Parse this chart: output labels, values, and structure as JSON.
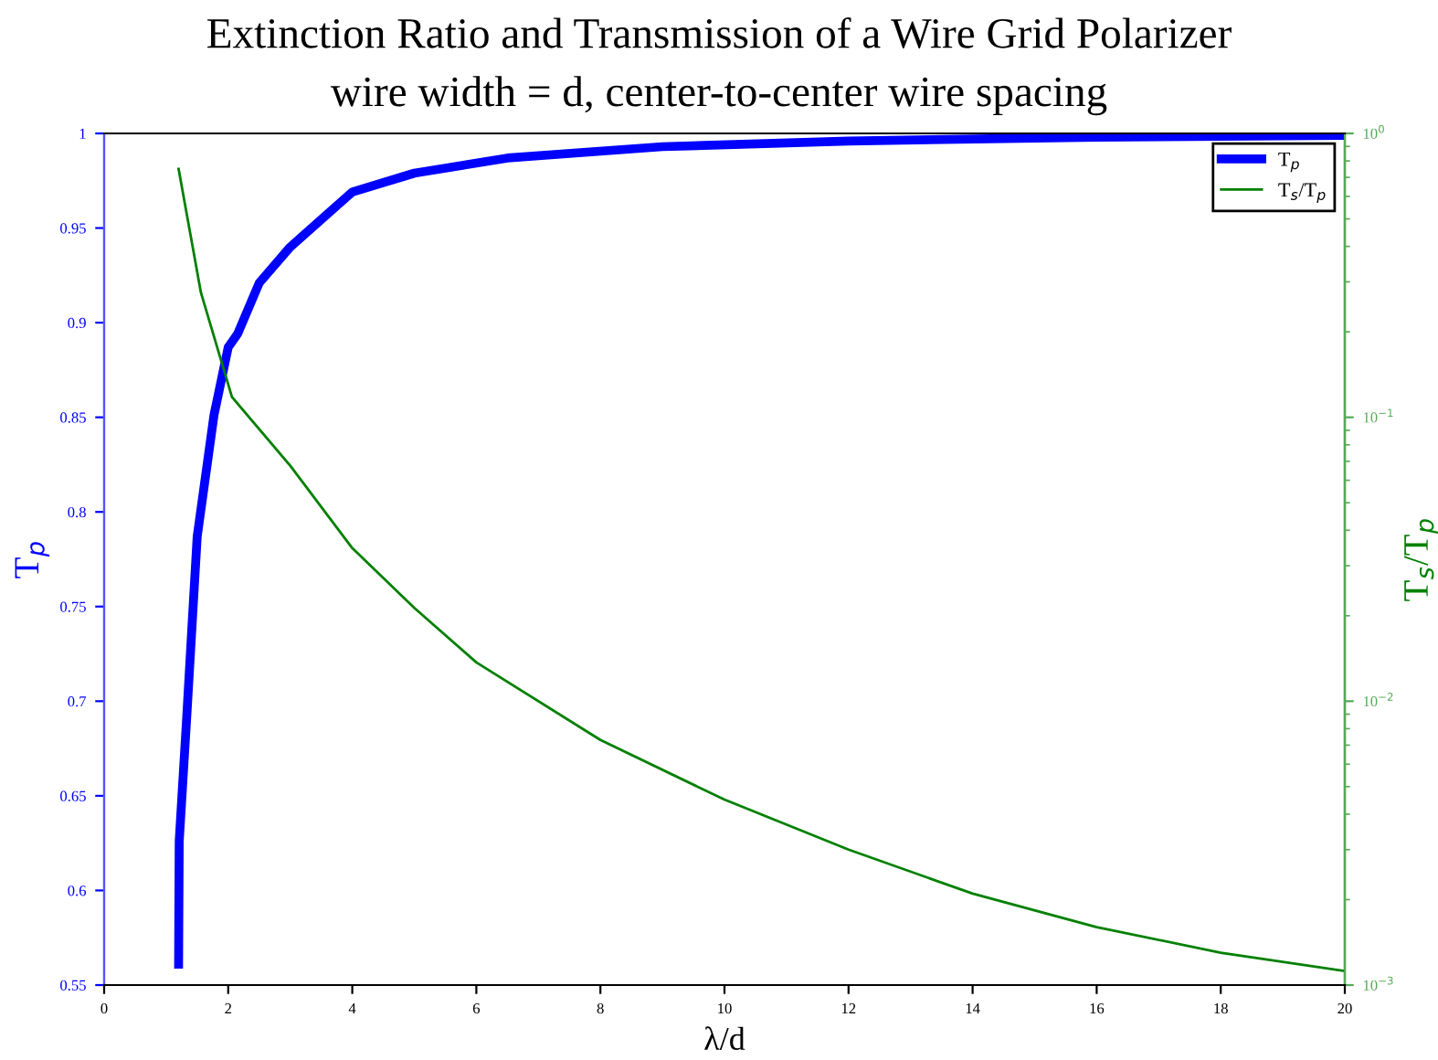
{
  "chart_data": {
    "type": "line",
    "title": "Extinction Ratio and Transmission of a Wire Grid Polarizer",
    "subtitle": "wire width = d, center-to-center wire spacing",
    "xlabel": "λ/d",
    "ylabel": "T$_{p}$",
    "y2label": "T$_{s}$/T$_{p}$",
    "xlim": [
      0,
      20
    ],
    "xticks": [
      0,
      2,
      4,
      6,
      8,
      10,
      12,
      14,
      16,
      18,
      20
    ],
    "ylim": [
      0.55,
      1
    ],
    "yticks": [
      0.55,
      0.6,
      0.65,
      0.7,
      0.75,
      0.8,
      0.85,
      0.9,
      0.95,
      1
    ],
    "y2lim": [
      0.001,
      1
    ],
    "y2ticks": [
      {
        "value": 0.001,
        "label": "10$^{−3}$"
      },
      {
        "value": 0.01,
        "label": "10$^{−2}$"
      },
      {
        "value": 0.1,
        "label": "10$^{−1}$"
      },
      {
        "value": 1,
        "label": "10$^{0}$"
      }
    ],
    "log": "y2",
    "grid": false,
    "legend": "top right",
    "marker": "none",
    "line_style": "solid",
    "series": [
      {
        "name": "T$_{p}$",
        "color": "#0000ff",
        "x": [
          1.2,
          1.21,
          1.33,
          1.5,
          1.77,
          2.0,
          2.15,
          2.5,
          3,
          4,
          5,
          6.5,
          9,
          12,
          16,
          20
        ],
        "values": [
          0.561,
          0.626,
          0.691,
          0.787,
          0.851,
          0.887,
          0.894,
          0.921,
          0.94,
          0.969,
          0.979,
          0.987,
          0.993,
          0.996,
          0.998,
          0.999
        ]
      },
      {
        "name": "T$_{s}$/T$_{p}$",
        "color": "#008000",
        "axis": "y2",
        "x": [
          1.2,
          1.56,
          2.06,
          3,
          4,
          5,
          6,
          8,
          10,
          12,
          14,
          16,
          18,
          20
        ],
        "values": [
          0.75,
          0.275,
          0.118,
          0.0675,
          0.0346,
          0.0213,
          0.0137,
          0.0073,
          0.0045,
          0.003,
          0.0021,
          0.0016,
          0.0013,
          0.00112
        ]
      }
    ]
  }
}
